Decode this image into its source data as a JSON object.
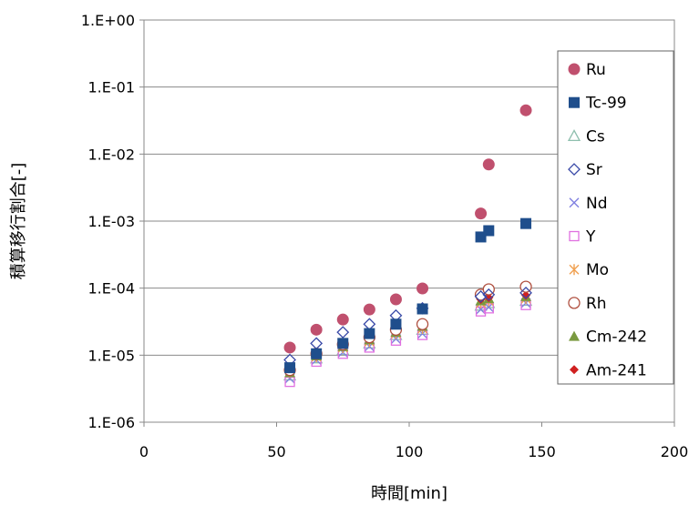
{
  "chart_data": {
    "type": "scatter",
    "xlabel": "時間[min]",
    "ylabel": "積算移行割合[-]",
    "x_axis": {
      "min": 0,
      "max": 200,
      "ticks": [
        "0",
        "50",
        "100",
        "150",
        "200"
      ],
      "tick_values": [
        0,
        50,
        100,
        150,
        200
      ]
    },
    "y_axis": {
      "scale": "log",
      "min": 1e-06,
      "max": 1,
      "ticks": [
        "1.E+00",
        "1.E-01",
        "1.E-02",
        "1.E-03",
        "1.E-04",
        "1.E-05",
        "1.E-06"
      ],
      "tick_values": [
        1,
        0.1,
        0.01,
        0.001,
        0.0001,
        1e-05,
        1e-06
      ]
    },
    "grid": {
      "horizontal": true,
      "vertical": false
    },
    "legend_position": "right",
    "series": [
      {
        "name": "Ru",
        "marker": "circle-filled",
        "color": "#c0506e",
        "x": [
          55,
          65,
          75,
          85,
          95,
          105,
          127,
          130,
          144
        ],
        "y": [
          1.3e-05,
          2.4e-05,
          3.4e-05,
          4.8e-05,
          6.8e-05,
          9.9e-05,
          0.0013,
          0.007,
          0.045
        ]
      },
      {
        "name": "Tc-99",
        "marker": "square-filled",
        "color": "#1f4e8c",
        "x": [
          55,
          65,
          75,
          85,
          95,
          105,
          127,
          130,
          144
        ],
        "y": [
          6.5e-06,
          1.05e-05,
          1.5e-05,
          2.1e-05,
          2.9e-05,
          4.9e-05,
          0.00058,
          0.00072,
          0.00092
        ]
      },
      {
        "name": "Cs",
        "marker": "triangle-open",
        "color": "#8fbfae",
        "x": [
          55,
          65,
          75,
          85,
          95,
          105,
          127,
          130,
          144
        ],
        "y": [
          5e-06,
          9e-06,
          1.2e-05,
          1.5e-05,
          2e-05,
          2.4e-05,
          5.5e-05,
          6e-05,
          6.5e-05
        ]
      },
      {
        "name": "Sr",
        "marker": "diamond-open",
        "color": "#3a4aa8",
        "x": [
          55,
          65,
          75,
          85,
          95,
          105,
          127,
          130,
          144
        ],
        "y": [
          8.5e-06,
          1.5e-05,
          2.2e-05,
          2.9e-05,
          3.9e-05,
          5e-05,
          7.5e-05,
          8e-05,
          8.5e-05
        ]
      },
      {
        "name": "Nd",
        "marker": "x",
        "color": "#8080e0",
        "x": [
          55,
          65,
          75,
          85,
          95,
          105,
          127,
          130,
          144
        ],
        "y": [
          4.5e-06,
          8.5e-06,
          1.1e-05,
          1.35e-05,
          1.75e-05,
          2.1e-05,
          4.8e-05,
          5.2e-05,
          6e-05
        ]
      },
      {
        "name": "Y",
        "marker": "square-open",
        "color": "#e070e0",
        "x": [
          55,
          65,
          75,
          85,
          95,
          105,
          127,
          130,
          144
        ],
        "y": [
          4e-06,
          8e-06,
          1.05e-05,
          1.3e-05,
          1.65e-05,
          2e-05,
          4.5e-05,
          5e-05,
          5.6e-05
        ]
      },
      {
        "name": "Mo",
        "marker": "asterisk",
        "color": "#f0a050",
        "x": [
          55,
          65,
          75,
          85,
          95,
          105,
          127,
          130,
          144
        ],
        "y": [
          5.5e-06,
          9.5e-06,
          1.3e-05,
          1.6e-05,
          2.1e-05,
          2.5e-05,
          6e-05,
          6.5e-05,
          7e-05
        ]
      },
      {
        "name": "Rh",
        "marker": "circle-open",
        "color": "#b05040",
        "x": [
          55,
          65,
          75,
          85,
          95,
          105,
          127,
          130,
          144
        ],
        "y": [
          6e-06,
          1.05e-05,
          1.45e-05,
          1.85e-05,
          2.4e-05,
          2.9e-05,
          8e-05,
          9.6e-05,
          0.000105
        ]
      },
      {
        "name": "Cm-242",
        "marker": "triangle-filled",
        "color": "#7a9a40",
        "x": [
          55,
          65,
          75,
          85,
          95,
          105,
          127,
          130,
          144
        ],
        "y": [
          5.5e-06,
          9.8e-06,
          1.35e-05,
          1.7e-05,
          2.2e-05,
          2.7e-05,
          6.5e-05,
          7e-05,
          7.5e-05
        ]
      },
      {
        "name": "Am-241",
        "marker": "diamond-filled",
        "color": "#d02020",
        "x": [
          55,
          65,
          75,
          85,
          95,
          105,
          127,
          130,
          144
        ],
        "y": [
          5.8e-06,
          1e-05,
          1.4e-05,
          1.75e-05,
          2.3e-05,
          2.8e-05,
          6.8e-05,
          7.2e-05,
          7.8e-05
        ]
      }
    ]
  }
}
